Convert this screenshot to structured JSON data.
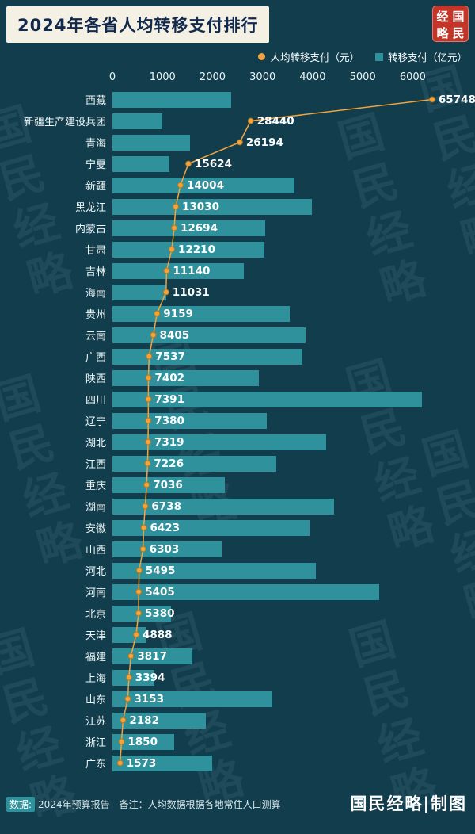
{
  "title": "2024年各省人均转移支付排行",
  "seal": {
    "top_left": "经",
    "top_right": "国",
    "bottom_left": "略",
    "bottom_right": "民"
  },
  "legend": {
    "line_label": "人均转移支付（元）",
    "bar_label": "转移支付（亿元）"
  },
  "colors": {
    "background": "#113d4d",
    "bar": "#2e919c",
    "line": "#f2a33c",
    "title_bg": "#f4f1e4",
    "title_text": "#12294e",
    "seal_bg": "#c43527"
  },
  "footer": {
    "source_label": "数据:",
    "source_text": "2024年预算报告",
    "note_text": "备注：人均数据根据各地常住人口测算",
    "credit": "国民经略|制图"
  },
  "watermark_text": "国民经略",
  "chart_data": {
    "type": "bar",
    "orientation": "horizontal",
    "title": "2024年各省人均转移支付排行",
    "categories": [
      "西藏",
      "新疆生产建设兵团",
      "青海",
      "宁夏",
      "新疆",
      "黑龙江",
      "内蒙古",
      "甘肃",
      "吉林",
      "海南",
      "贵州",
      "云南",
      "广西",
      "陕西",
      "四川",
      "辽宁",
      "湖北",
      "江西",
      "重庆",
      "湖南",
      "安徽",
      "山西",
      "河北",
      "河南",
      "北京",
      "天津",
      "福建",
      "上海",
      "山东",
      "江苏",
      "浙江",
      "广东"
    ],
    "series": [
      {
        "name": "转移支付（亿元）",
        "type": "bar",
        "values": [
          2370,
          1000,
          1550,
          1140,
          3630,
          3980,
          3050,
          3040,
          2620,
          1080,
          3540,
          3860,
          3790,
          2920,
          6190,
          3090,
          4270,
          3270,
          2250,
          4430,
          3930,
          2190,
          4060,
          5330,
          1170,
          670,
          1600,
          840,
          3190,
          1860,
          1230,
          2000
        ]
      },
      {
        "name": "人均转移支付（元）",
        "type": "line",
        "values": [
          65748,
          28440,
          26194,
          15624,
          14004,
          13030,
          12694,
          12210,
          11140,
          11031,
          9159,
          8405,
          7537,
          7402,
          7391,
          7380,
          7319,
          7226,
          7036,
          6738,
          6423,
          6303,
          5495,
          5405,
          5380,
          4888,
          3817,
          3394,
          3153,
          2182,
          1850,
          1573
        ]
      }
    ],
    "bar_axis": {
      "unit": "亿元",
      "ticks": [
        0,
        1000,
        2000,
        3000,
        4000,
        5000,
        6000
      ],
      "max": 6800
    },
    "line_axis": {
      "unit": "元",
      "max": 70000
    },
    "grid": false,
    "legend_position": "top-right"
  }
}
